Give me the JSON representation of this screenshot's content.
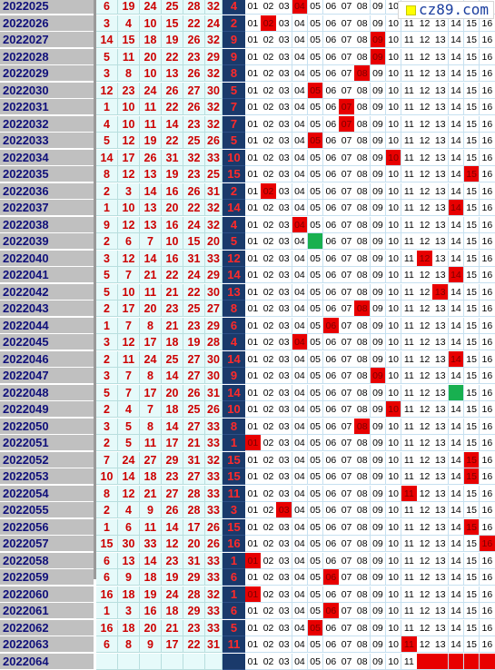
{
  "site_badge": "cz89.com",
  "colors": {
    "blue_bar": "#1a3a6b",
    "hit_red": "#e80000",
    "hit_green": "#18b050",
    "period_gray": "#c0c0c0",
    "cell_bg": "#e6fafa"
  },
  "trend_columns": [
    "01",
    "02",
    "03",
    "04",
    "05",
    "06",
    "07",
    "08",
    "09",
    "10",
    "11",
    "12",
    "13",
    "14",
    "15",
    "16"
  ],
  "rows": [
    {
      "period": "2022025",
      "reds": [
        "6",
        "19",
        "24",
        "25",
        "28",
        "32"
      ],
      "blue": "4",
      "hits": [
        4
      ],
      "hit_color": "red"
    },
    {
      "period": "2022026",
      "reds": [
        "3",
        "4",
        "10",
        "15",
        "22",
        "24"
      ],
      "blue": "2",
      "hits": [
        2
      ],
      "hit_color": "red"
    },
    {
      "period": "2022027",
      "reds": [
        "14",
        "15",
        "18",
        "19",
        "26",
        "32"
      ],
      "blue": "9",
      "hits": [
        9
      ],
      "hit_color": "red"
    },
    {
      "period": "2022028",
      "reds": [
        "5",
        "11",
        "20",
        "22",
        "23",
        "29"
      ],
      "blue": "9",
      "hits": [
        9
      ],
      "hit_color": "red"
    },
    {
      "period": "2022029",
      "reds": [
        "3",
        "8",
        "10",
        "13",
        "26",
        "32"
      ],
      "blue": "8",
      "hits": [
        8
      ],
      "hit_color": "red"
    },
    {
      "period": "2022030",
      "reds": [
        "12",
        "23",
        "24",
        "26",
        "27",
        "30"
      ],
      "blue": "5",
      "hits": [
        5
      ],
      "hit_color": "red"
    },
    {
      "period": "2022031",
      "reds": [
        "1",
        "10",
        "11",
        "22",
        "26",
        "32"
      ],
      "blue": "7",
      "hits": [
        7
      ],
      "hit_color": "red"
    },
    {
      "period": "2022032",
      "reds": [
        "4",
        "10",
        "11",
        "14",
        "23",
        "32"
      ],
      "blue": "7",
      "hits": [
        7
      ],
      "hit_color": "red"
    },
    {
      "period": "2022033",
      "reds": [
        "5",
        "12",
        "19",
        "22",
        "25",
        "26"
      ],
      "blue": "5",
      "hits": [
        5
      ],
      "hit_color": "red"
    },
    {
      "period": "2022034",
      "reds": [
        "14",
        "17",
        "26",
        "31",
        "32",
        "33"
      ],
      "blue": "10",
      "hits": [
        10
      ],
      "hit_color": "red"
    },
    {
      "period": "2022035",
      "reds": [
        "8",
        "12",
        "13",
        "19",
        "23",
        "25"
      ],
      "blue": "15",
      "hits": [
        15
      ],
      "hit_color": "red"
    },
    {
      "period": "2022036",
      "reds": [
        "2",
        "3",
        "14",
        "16",
        "26",
        "31"
      ],
      "blue": "2",
      "hits": [
        2
      ],
      "hit_color": "red"
    },
    {
      "period": "2022037",
      "reds": [
        "1",
        "10",
        "13",
        "20",
        "22",
        "32"
      ],
      "blue": "14",
      "hits": [
        14
      ],
      "hit_color": "red"
    },
    {
      "period": "2022038",
      "reds": [
        "9",
        "12",
        "13",
        "16",
        "24",
        "32"
      ],
      "blue": "4",
      "hits": [
        4
      ],
      "hit_color": "red"
    },
    {
      "period": "2022039",
      "reds": [
        "2",
        "6",
        "7",
        "10",
        "15",
        "20"
      ],
      "blue": "5",
      "hits": [
        5
      ],
      "hit_color": "green"
    },
    {
      "period": "2022040",
      "reds": [
        "3",
        "12",
        "14",
        "16",
        "31",
        "33"
      ],
      "blue": "12",
      "hits": [
        12
      ],
      "hit_color": "red"
    },
    {
      "period": "2022041",
      "reds": [
        "5",
        "7",
        "21",
        "22",
        "24",
        "29"
      ],
      "blue": "14",
      "hits": [
        14
      ],
      "hit_color": "red"
    },
    {
      "period": "2022042",
      "reds": [
        "5",
        "10",
        "11",
        "21",
        "22",
        "30"
      ],
      "blue": "13",
      "hits": [
        13
      ],
      "hit_color": "red"
    },
    {
      "period": "2022043",
      "reds": [
        "2",
        "17",
        "20",
        "23",
        "25",
        "27"
      ],
      "blue": "8",
      "hits": [
        8
      ],
      "hit_color": "red"
    },
    {
      "period": "2022044",
      "reds": [
        "1",
        "7",
        "8",
        "21",
        "23",
        "29"
      ],
      "blue": "6",
      "hits": [
        6
      ],
      "hit_color": "red"
    },
    {
      "period": "2022045",
      "reds": [
        "3",
        "12",
        "17",
        "18",
        "19",
        "28"
      ],
      "blue": "4",
      "hits": [
        4
      ],
      "hit_color": "red"
    },
    {
      "period": "2022046",
      "reds": [
        "2",
        "11",
        "24",
        "25",
        "27",
        "30"
      ],
      "blue": "14",
      "hits": [
        14
      ],
      "hit_color": "red"
    },
    {
      "period": "2022047",
      "reds": [
        "3",
        "7",
        "8",
        "14",
        "27",
        "30"
      ],
      "blue": "9",
      "hits": [
        9
      ],
      "hit_color": "red"
    },
    {
      "period": "2022048",
      "reds": [
        "5",
        "7",
        "17",
        "20",
        "26",
        "31"
      ],
      "blue": "14",
      "hits": [
        14
      ],
      "hit_color": "green"
    },
    {
      "period": "2022049",
      "reds": [
        "2",
        "4",
        "7",
        "18",
        "25",
        "26"
      ],
      "blue": "10",
      "hits": [
        10
      ],
      "hit_color": "red"
    },
    {
      "period": "2022050",
      "reds": [
        "3",
        "5",
        "8",
        "14",
        "27",
        "33"
      ],
      "blue": "8",
      "hits": [
        8
      ],
      "hit_color": "red"
    },
    {
      "period": "2022051",
      "reds": [
        "2",
        "5",
        "11",
        "17",
        "21",
        "33"
      ],
      "blue": "1",
      "hits": [
        1
      ],
      "hit_color": "red"
    },
    {
      "period": "2022052",
      "reds": [
        "7",
        "24",
        "27",
        "29",
        "31",
        "32"
      ],
      "blue": "15",
      "hits": [
        15
      ],
      "hit_color": "red"
    },
    {
      "period": "2022053",
      "reds": [
        "10",
        "14",
        "18",
        "23",
        "27",
        "33"
      ],
      "blue": "15",
      "hits": [
        15
      ],
      "hit_color": "red"
    },
    {
      "period": "2022054",
      "reds": [
        "8",
        "12",
        "21",
        "27",
        "28",
        "33"
      ],
      "blue": "11",
      "hits": [
        11
      ],
      "hit_color": "red"
    },
    {
      "period": "2022055",
      "reds": [
        "2",
        "4",
        "9",
        "26",
        "28",
        "33"
      ],
      "blue": "3",
      "hits": [
        3
      ],
      "hit_color": "red"
    },
    {
      "period": "2022056",
      "reds": [
        "1",
        "6",
        "11",
        "14",
        "17",
        "26"
      ],
      "blue": "15",
      "hits": [
        15
      ],
      "hit_color": "red"
    },
    {
      "period": "2022057",
      "reds": [
        "15",
        "30",
        "33",
        "12",
        "20",
        "26"
      ],
      "blue": "16",
      "hits": [
        16
      ],
      "hit_color": "red"
    },
    {
      "period": "2022058",
      "reds": [
        "6",
        "13",
        "14",
        "23",
        "31",
        "33"
      ],
      "blue": "1",
      "hits": [
        1
      ],
      "hit_color": "red"
    },
    {
      "period": "2022059",
      "reds": [
        "6",
        "9",
        "18",
        "19",
        "29",
        "33"
      ],
      "blue": "6",
      "hits": [
        6
      ],
      "hit_color": "red"
    },
    {
      "period": "2022060",
      "reds": [
        "16",
        "18",
        "19",
        "24",
        "28",
        "32"
      ],
      "blue": "1",
      "hits": [
        1
      ],
      "hit_color": "red"
    },
    {
      "period": "2022061",
      "reds": [
        "1",
        "3",
        "16",
        "18",
        "29",
        "33"
      ],
      "blue": "6",
      "hits": [
        6
      ],
      "hit_color": "red"
    },
    {
      "period": "2022062",
      "reds": [
        "16",
        "18",
        "20",
        "21",
        "23",
        "33"
      ],
      "blue": "5",
      "hits": [
        5
      ],
      "hit_color": "red"
    },
    {
      "period": "2022063",
      "reds": [
        "6",
        "8",
        "9",
        "17",
        "22",
        "31"
      ],
      "blue": "11",
      "hits": [
        11
      ],
      "hit_color": "red"
    },
    {
      "period": "2022064",
      "reds": [
        "",
        "",
        "",
        "",
        "",
        ""
      ],
      "blue": "",
      "hits": [
        12,
        13,
        14,
        15,
        16
      ],
      "hit_color": "red"
    }
  ]
}
